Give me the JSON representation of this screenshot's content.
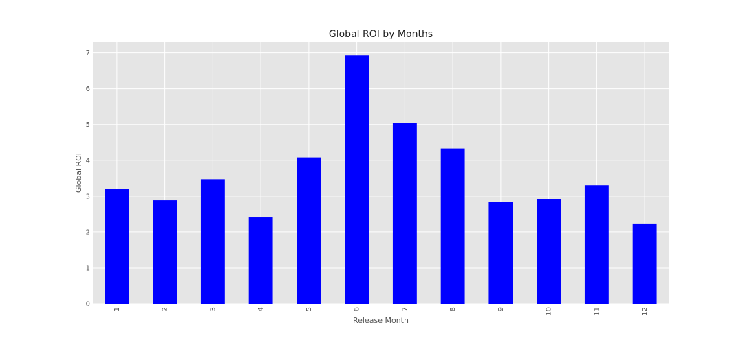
{
  "chart_data": {
    "type": "bar",
    "title": "Global ROI by Months",
    "xlabel": "Release Month",
    "ylabel": "Global ROI",
    "categories": [
      "1",
      "2",
      "3",
      "4",
      "5",
      "6",
      "7",
      "8",
      "9",
      "10",
      "11",
      "12"
    ],
    "values": [
      3.2,
      2.88,
      3.47,
      2.42,
      4.08,
      6.93,
      5.05,
      4.33,
      2.84,
      2.92,
      3.3,
      2.23
    ],
    "ylim": [
      0,
      7.3
    ],
    "yticks": [
      0,
      1,
      2,
      3,
      4,
      5,
      6,
      7
    ],
    "grid": true,
    "bar_color": "#0000ff",
    "plot_background": "#e5e5e5"
  }
}
